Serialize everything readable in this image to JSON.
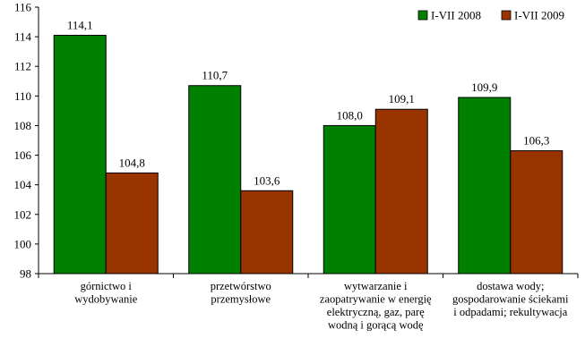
{
  "chart_data": {
    "type": "bar",
    "title": "",
    "xlabel": "",
    "ylabel": "",
    "ylim": [
      98,
      116
    ],
    "yticks": [
      98,
      100,
      102,
      104,
      106,
      108,
      110,
      112,
      114,
      116
    ],
    "grid": false,
    "legend_position": "top-right",
    "categories": [
      [
        "górnictwo i",
        "wydobywanie"
      ],
      [
        "przetwórstwo",
        "przemysłowe"
      ],
      [
        "wytwarzanie i",
        "zaopatrywanie w energię",
        "elektryczną, gaz, parę",
        "wodną i gorącą wodę"
      ],
      [
        "dostawa wody;",
        "gospodarowanie ściekami",
        "i odpadami; rekultywacja"
      ]
    ],
    "series": [
      {
        "name": "I-VII 2008",
        "color": "#008000",
        "values": [
          114.1,
          110.7,
          108.0,
          109.9
        ],
        "labels": [
          "114,1",
          "110,7",
          "108,0",
          "109,9"
        ]
      },
      {
        "name": "I-VII 2009",
        "color": "#993300",
        "values": [
          104.8,
          103.6,
          109.1,
          106.3
        ],
        "labels": [
          "104,8",
          "103,6",
          "109,1",
          "106,3"
        ]
      }
    ]
  }
}
